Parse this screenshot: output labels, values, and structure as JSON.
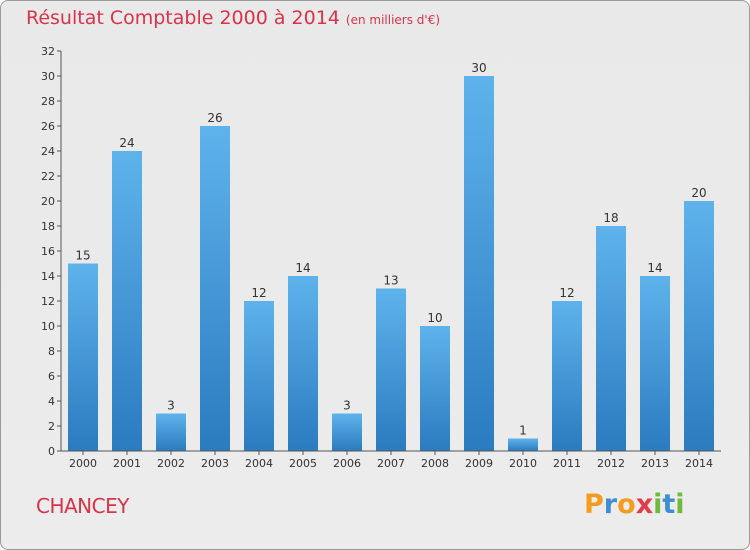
{
  "title": "Résultat Comptable 2000 à 2014",
  "subtitle": "(en milliers d'€)",
  "footer_label": "CHANCEY",
  "logo_text": "Proxiti",
  "colors": {
    "title": "#d9334a",
    "bar_top": "#5eb3ec",
    "bar_bottom": "#2b7bbf",
    "background": "#ebebeb"
  },
  "chart_data": {
    "type": "bar",
    "title": "Résultat Comptable 2000 à 2014",
    "categories": [
      "2000",
      "2001",
      "2002",
      "2003",
      "2004",
      "2005",
      "2006",
      "2007",
      "2008",
      "2009",
      "2010",
      "2011",
      "2012",
      "2013",
      "2014"
    ],
    "values": [
      15,
      24,
      3,
      26,
      12,
      14,
      3,
      13,
      10,
      30,
      1,
      12,
      18,
      14,
      20
    ],
    "ylim": [
      0,
      32
    ],
    "yticks": [
      0,
      2,
      4,
      6,
      8,
      10,
      12,
      14,
      16,
      18,
      20,
      22,
      24,
      26,
      28,
      30,
      32
    ],
    "grid": false
  }
}
